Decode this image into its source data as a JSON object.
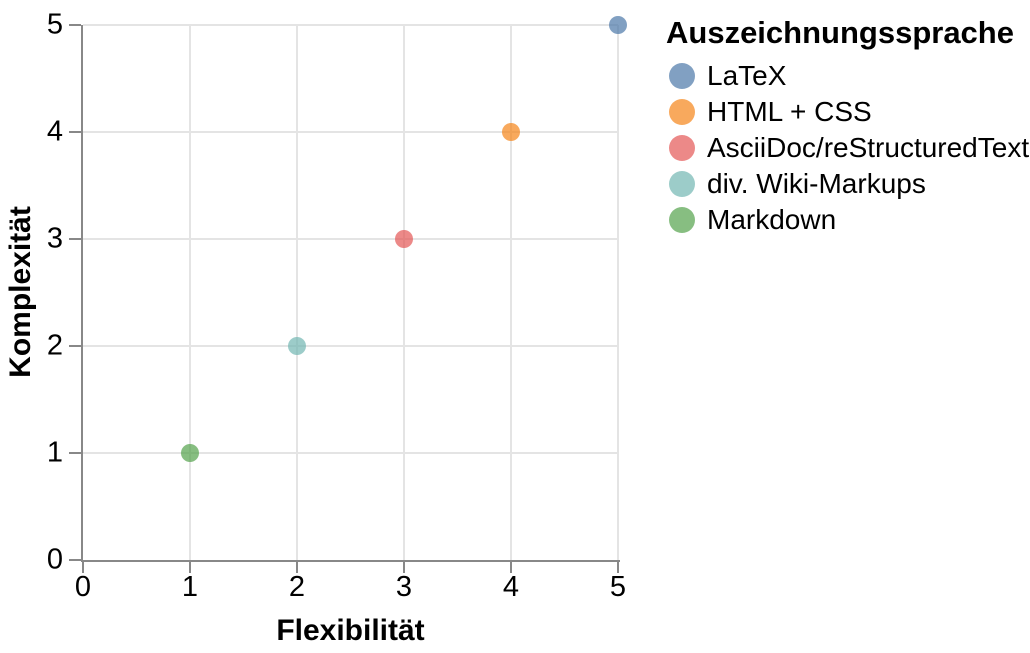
{
  "chart_data": {
    "type": "scatter",
    "xlabel": "Flexibilität",
    "ylabel": "Komplexität",
    "xlim": [
      0,
      5
    ],
    "ylim": [
      0,
      5
    ],
    "xticks": [
      0,
      1,
      2,
      3,
      4,
      5
    ],
    "yticks": [
      0,
      1,
      2,
      3,
      4,
      5
    ],
    "grid": true,
    "legend_title": "Auszeichnungssprache",
    "legend_position": "right-top",
    "marker_opacity": 0.7,
    "series": [
      {
        "name": "LaTeX",
        "x": 5,
        "y": 5,
        "color": "#4c78a8"
      },
      {
        "name": "HTML + CSS",
        "x": 4,
        "y": 4,
        "color": "#f58518"
      },
      {
        "name": "AsciiDoc/reStructuredText",
        "x": 3,
        "y": 3,
        "color": "#e45756"
      },
      {
        "name": "div. Wiki-Markups",
        "x": 2,
        "y": 2,
        "color": "#72b7b2"
      },
      {
        "name": "Markdown",
        "x": 1,
        "y": 1,
        "color": "#54a24b"
      }
    ],
    "axis_color": "#888888",
    "grid_color": "#e4e4e4"
  }
}
